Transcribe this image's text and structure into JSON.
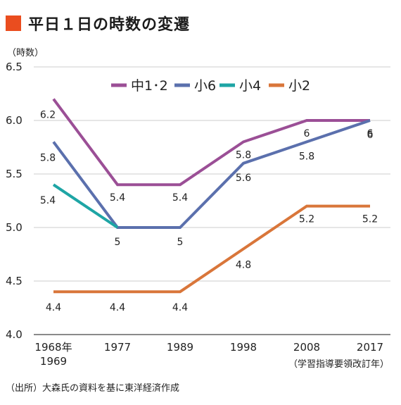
{
  "title": "平日１日の時数の変遷",
  "unit_label": "（時数）",
  "source": "（出所）大森氏の資料を基に東洋経済作成",
  "x_note": "（学習指導要領改訂年）",
  "chart_data": {
    "type": "line",
    "title": "平日１日の時数の変遷",
    "ylabel": "（時数）",
    "ylim": [
      4.0,
      6.5
    ],
    "yticks": [
      "4.0",
      "4.5",
      "5.0",
      "5.5",
      "6.0",
      "6.5"
    ],
    "categories": [
      "1968年",
      "1977",
      "1989",
      "1998",
      "2008",
      "2017"
    ],
    "category_sublabels": [
      "1969",
      "",
      "",
      "",
      "",
      ""
    ],
    "grid": "horizontal",
    "legend_position": "top",
    "series": [
      {
        "name": "中1･2",
        "color": "#9b4f96",
        "values": [
          6.2,
          5.4,
          5.4,
          5.8,
          6.0,
          6.0
        ],
        "labels": [
          "6.2",
          "5.4",
          "5.4",
          "5.8",
          "6",
          "6"
        ]
      },
      {
        "name": "小6",
        "color": "#5b70ad",
        "values": [
          5.8,
          5.0,
          5.0,
          5.6,
          5.8,
          6.0
        ],
        "labels": [
          "5.8",
          "5",
          "5",
          "5.6",
          "5.8",
          "6"
        ]
      },
      {
        "name": "小4",
        "color": "#1ea5a5",
        "values": [
          5.4,
          5.0,
          null,
          null,
          null,
          null
        ],
        "labels": [
          "5.4",
          "",
          "",
          "",
          "",
          ""
        ]
      },
      {
        "name": "小2",
        "color": "#d9763a",
        "values": [
          4.4,
          4.4,
          4.4,
          4.8,
          5.2,
          5.2
        ],
        "labels": [
          "4.4",
          "4.4",
          "4.4",
          "4.8",
          "5.2",
          "5.2"
        ]
      }
    ]
  }
}
